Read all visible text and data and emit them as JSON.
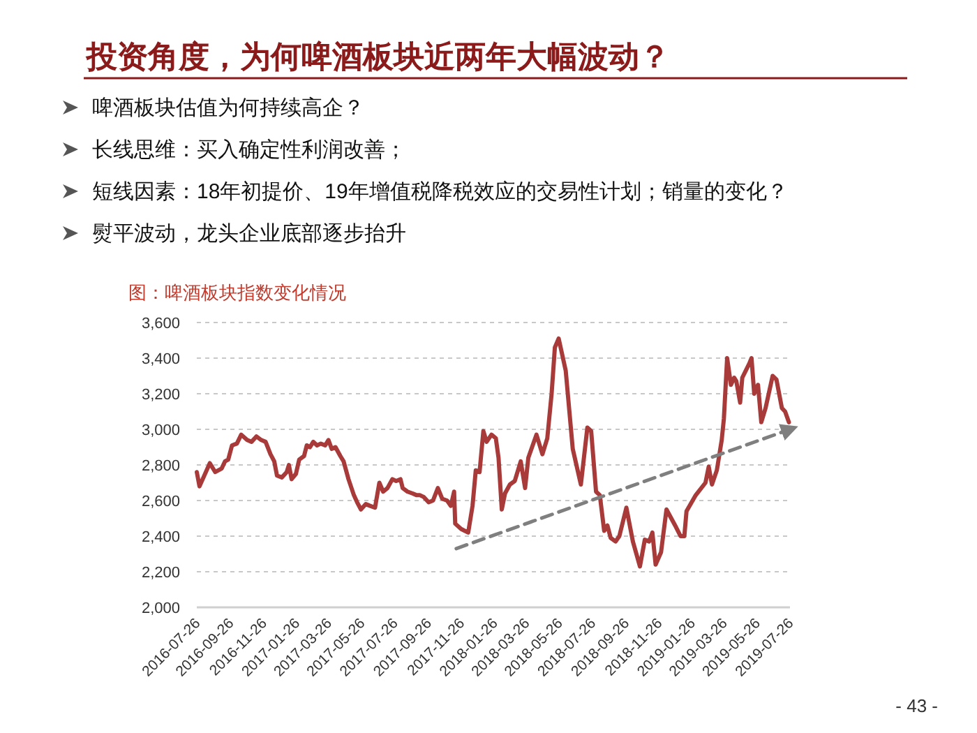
{
  "chart_data": {
    "type": "line",
    "title": "投资角度，为何啤酒板块近两年大幅波动？",
    "subtitle": "图：啤酒板块指数变化情况",
    "annotations": [
      "啤酒板块估值为何持续高企？",
      "长线思维：买入确定性利润改善；",
      "短线因素：18年初提价、19年增值税降税效应的交易性计划；销量的变化？",
      "熨平波动，龙头企业底部逐步抬升",
      "- 43 -"
    ],
    "xlim": [
      "2016-07-26",
      "2019-07-26"
    ],
    "xticks": [
      "2016-07-26",
      "2016-09-26",
      "2016-11-26",
      "2017-01-26",
      "2017-03-26",
      "2017-05-26",
      "2017-07-26",
      "2017-09-26",
      "2017-11-26",
      "2018-01-26",
      "2018-03-26",
      "2018-05-26",
      "2018-07-26",
      "2018-09-26",
      "2018-11-26",
      "2019-01-26",
      "2019-03-26",
      "2019-05-26",
      "2019-07-26"
    ],
    "ylim": [
      2000,
      3600
    ],
    "yticks": [
      {
        "value": 2000,
        "label": "2,000"
      },
      {
        "value": 2200,
        "label": "2,200"
      },
      {
        "value": 2400,
        "label": "2,400"
      },
      {
        "value": 2600,
        "label": "2,600"
      },
      {
        "value": 2800,
        "label": "2,800"
      },
      {
        "value": 3000,
        "label": "3,000"
      },
      {
        "value": 3200,
        "label": "3,200"
      },
      {
        "value": 3400,
        "label": "3,400"
      },
      {
        "value": 3600,
        "label": "3,600"
      }
    ],
    "grid": "y",
    "series": [
      {
        "color": "#a83a3a",
        "line_style": "solid",
        "x": [
          "2016-07-26",
          "2016-07-31",
          "2016-08-19",
          "2016-08-29",
          "2016-09-10",
          "2016-09-16",
          "2016-09-22",
          "2016-09-29",
          "2016-10-08",
          "2016-10-16",
          "2016-10-27",
          "2016-11-04",
          "2016-11-13",
          "2016-11-22",
          "2016-11-30",
          "2016-12-09",
          "2016-12-16",
          "2016-12-21",
          "2016-12-30",
          "2017-01-08",
          "2017-01-12",
          "2017-01-17",
          "2017-01-25",
          "2017-01-31",
          "2017-02-09",
          "2017-02-14",
          "2017-02-20",
          "2017-02-26",
          "2017-03-05",
          "2017-03-12",
          "2017-03-20",
          "2017-03-26",
          "2017-04-01",
          "2017-04-08",
          "2017-04-17",
          "2017-04-23",
          "2017-05-02",
          "2017-05-12",
          "2017-05-18",
          "2017-05-25",
          "2017-06-03",
          "2017-06-11",
          "2017-06-20",
          "2017-06-28",
          "2017-07-05",
          "2017-07-13",
          "2017-07-22",
          "2017-07-29",
          "2017-08-06",
          "2017-08-10",
          "2017-08-19",
          "2017-08-28",
          "2017-09-05",
          "2017-09-11",
          "2017-09-18",
          "2017-09-27",
          "2017-10-05",
          "2017-10-14",
          "2017-10-22",
          "2017-10-31",
          "2017-11-07",
          "2017-11-13",
          "2017-11-15",
          "2017-11-26",
          "2017-12-09",
          "2017-12-17",
          "2017-12-23",
          "2017-12-30",
          "2018-01-06",
          "2018-01-12",
          "2018-01-21",
          "2018-01-29",
          "2018-02-03",
          "2018-02-09",
          "2018-02-15",
          "2018-02-24",
          "2018-03-05",
          "2018-03-16",
          "2018-03-24",
          "2018-03-30",
          "2018-04-14",
          "2018-04-25",
          "2018-05-04",
          "2018-05-12",
          "2018-05-18",
          "2018-05-25",
          "2018-06-07",
          "2018-06-20",
          "2018-07-05",
          "2018-07-17",
          "2018-07-24",
          "2018-08-02",
          "2018-08-09",
          "2018-08-17",
          "2018-08-23",
          "2018-08-29",
          "2018-09-07",
          "2018-09-14",
          "2018-09-27",
          "2018-10-09",
          "2018-10-22",
          "2018-10-31",
          "2018-11-08",
          "2018-11-14",
          "2018-11-20",
          "2018-11-30",
          "2018-12-10",
          "2018-12-26",
          "2019-01-05",
          "2019-01-12",
          "2019-01-16",
          "2019-02-02",
          "2019-02-20",
          "2019-02-26",
          "2019-03-04",
          "2019-03-13",
          "2019-03-22",
          "2019-03-26",
          "2019-04-01",
          "2019-04-08",
          "2019-04-14",
          "2019-04-18",
          "2019-04-25",
          "2019-04-29",
          "2019-05-12",
          "2019-05-16",
          "2019-05-21",
          "2019-05-28",
          "2019-06-03",
          "2019-06-11",
          "2019-06-24",
          "2019-07-01",
          "2019-07-11",
          "2019-07-17",
          "2019-07-24"
        ],
        "values": [
          2760,
          2680,
          2810,
          2760,
          2780,
          2820,
          2830,
          2910,
          2920,
          2970,
          2940,
          2930,
          2960,
          2940,
          2930,
          2860,
          2820,
          2740,
          2730,
          2760,
          2800,
          2720,
          2750,
          2830,
          2850,
          2910,
          2900,
          2930,
          2910,
          2920,
          2910,
          2940,
          2890,
          2900,
          2850,
          2820,
          2720,
          2630,
          2590,
          2550,
          2580,
          2570,
          2560,
          2700,
          2650,
          2670,
          2720,
          2710,
          2720,
          2670,
          2650,
          2640,
          2630,
          2630,
          2620,
          2590,
          2600,
          2670,
          2610,
          2600,
          2570,
          2650,
          2470,
          2440,
          2420,
          2570,
          2770,
          2760,
          2990,
          2930,
          2970,
          2950,
          2840,
          2550,
          2640,
          2690,
          2710,
          2820,
          2670,
          2840,
          2970,
          2860,
          2950,
          3200,
          3460,
          3510,
          3330,
          2890,
          2690,
          3010,
          2990,
          2650,
          2630,
          2430,
          2460,
          2390,
          2370,
          2400,
          2560,
          2370,
          2230,
          2380,
          2370,
          2420,
          2240,
          2310,
          2550,
          2460,
          2400,
          2400,
          2540,
          2630,
          2700,
          2790,
          2690,
          2770,
          2940,
          3060,
          3400,
          3250,
          3290,
          3270,
          3150,
          3290,
          3370,
          3400,
          3200,
          3250,
          3040,
          3120,
          3300,
          3280,
          3120,
          3100,
          3040
        ]
      },
      {
        "type": "line",
        "color": "#7f7f7f",
        "line_style": "dashed",
        "x": [
          "2017-11-17",
          "2019-07-26"
        ],
        "values": [
          2330,
          3000
        ]
      }
    ]
  }
}
